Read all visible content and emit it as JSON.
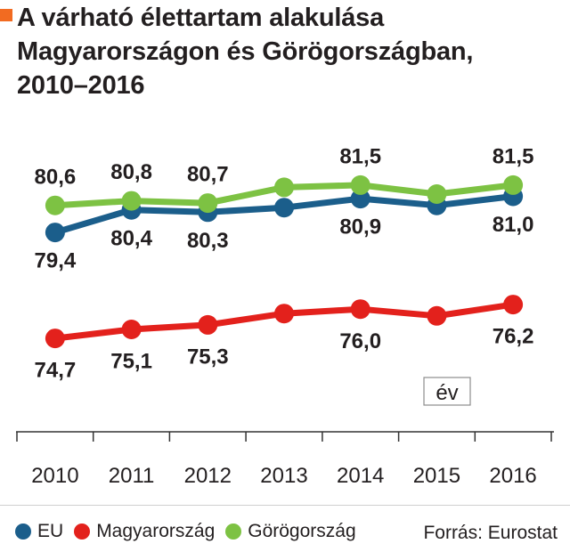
{
  "theme": {
    "accent": "#f26b21"
  },
  "chart_data": {
    "type": "line",
    "title": "A várható élettartam alakulása\nMagyarországon és Görögországban,\n2010–2016",
    "xlabel": "év",
    "categories": [
      "2010",
      "2011",
      "2012",
      "2013",
      "2014",
      "2015",
      "2016"
    ],
    "grid": false,
    "legend": "bottom",
    "source": "Forrás: Eurostat",
    "series": [
      {
        "name": "EU",
        "color": "#1b5e8b",
        "values": [
          79.4,
          80.4,
          80.3,
          80.5,
          80.9,
          80.6,
          81.0
        ],
        "labels": [
          "79,4",
          "80,4",
          "80,3",
          null,
          "80,9",
          null,
          "81,0"
        ]
      },
      {
        "name": "Magyarország",
        "color": "#e3211c",
        "values": [
          74.7,
          75.1,
          75.3,
          75.8,
          76.0,
          75.7,
          76.2
        ],
        "labels": [
          "74,7",
          "75,1",
          "75,3",
          null,
          "76,0",
          null,
          "76,2"
        ]
      },
      {
        "name": "Görögország",
        "color": "#7dc243",
        "values": [
          80.6,
          80.8,
          80.7,
          81.4,
          81.5,
          81.1,
          81.5
        ],
        "labels": [
          "80,6",
          "80,8",
          "80,7",
          null,
          "81,5",
          null,
          "81,5"
        ]
      }
    ]
  }
}
